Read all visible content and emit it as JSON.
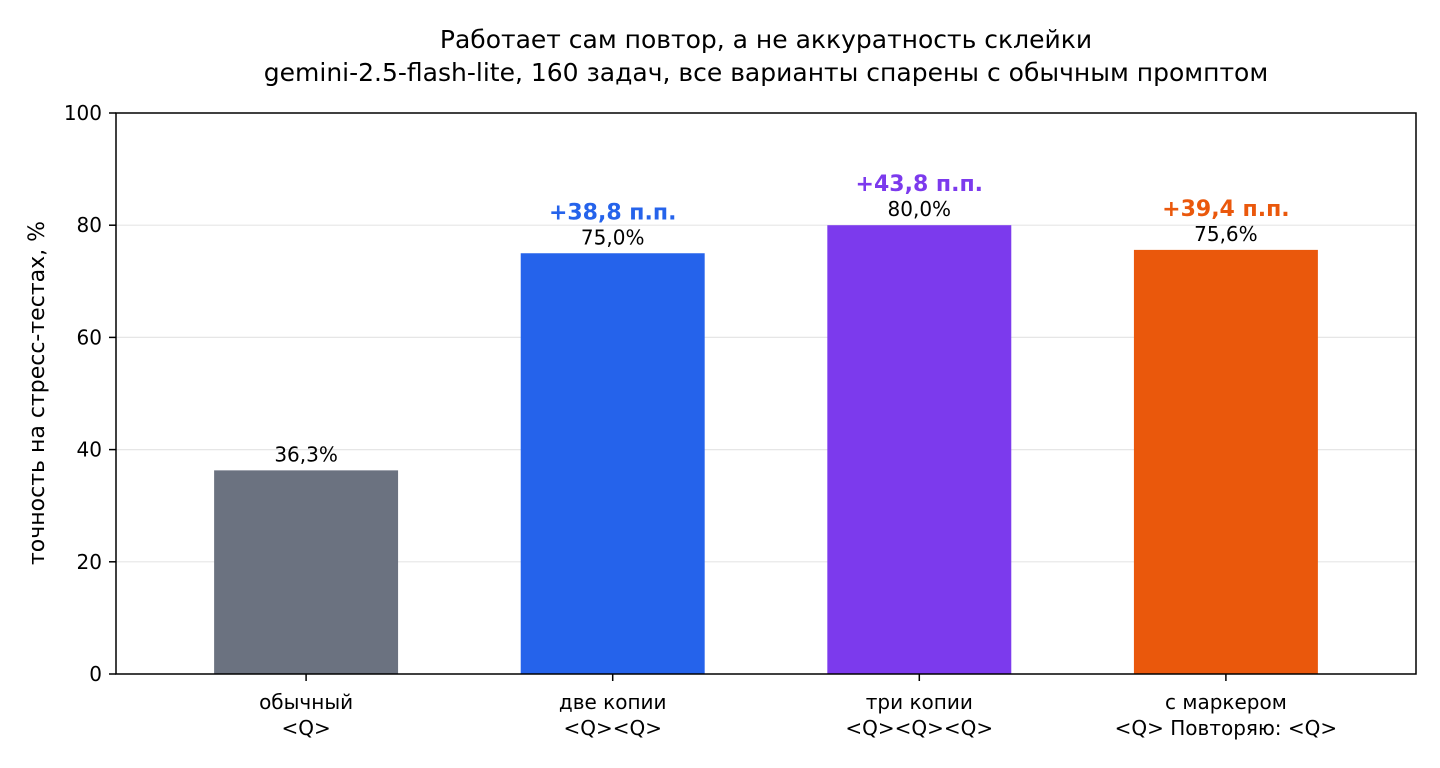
{
  "chart_data": {
    "type": "bar",
    "title": "Работает сам повтор, а не аккуратность склейки",
    "subtitle": "gemini-2.5-flash-lite, 160 задач, все варианты спарены с обычным промптом",
    "ylabel": "точность на стресс-тестах, %",
    "xlabel": "",
    "ylim": [
      0,
      100
    ],
    "yticks": [
      "0",
      "20",
      "40",
      "60",
      "80",
      "100"
    ],
    "grid": true,
    "categories": [
      {
        "line1": "обычный",
        "line2": "<Q>"
      },
      {
        "line1": "две копии",
        "line2": "<Q><Q>"
      },
      {
        "line1": "три копии",
        "line2": "<Q><Q><Q>"
      },
      {
        "line1": "с маркером",
        "line2": "<Q> Повторяю: <Q>"
      }
    ],
    "values": [
      36.3,
      75.0,
      80.0,
      75.6
    ],
    "value_labels": [
      "36,3%",
      "75,0%",
      "80,0%",
      "75,6%"
    ],
    "delta_labels": [
      "",
      "+38,8 п.п.",
      "+43,8 п.п.",
      "+39,4 п.п."
    ],
    "colors": [
      "#6b7280",
      "#2563eb",
      "#7c3aed",
      "#ea580c"
    ]
  }
}
